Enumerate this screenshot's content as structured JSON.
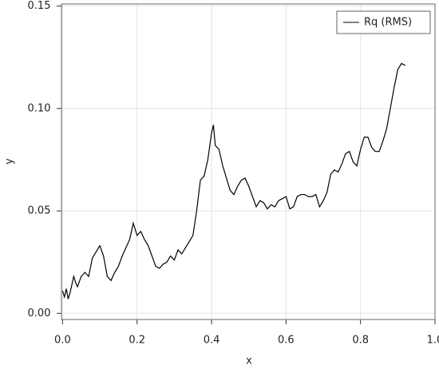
{
  "chart_data": {
    "type": "line",
    "xlabel": "x",
    "ylabel": "y",
    "x": [
      0.0,
      0.005,
      0.01,
      0.015,
      0.02,
      0.03,
      0.035,
      0.04,
      0.05,
      0.06,
      0.07,
      0.08,
      0.09,
      0.1,
      0.11,
      0.12,
      0.13,
      0.14,
      0.15,
      0.16,
      0.17,
      0.18,
      0.19,
      0.2,
      0.21,
      0.22,
      0.23,
      0.24,
      0.25,
      0.26,
      0.27,
      0.28,
      0.29,
      0.3,
      0.31,
      0.32,
      0.33,
      0.34,
      0.35,
      0.36,
      0.37,
      0.38,
      0.39,
      0.4,
      0.405,
      0.41,
      0.42,
      0.43,
      0.44,
      0.45,
      0.46,
      0.47,
      0.48,
      0.49,
      0.5,
      0.51,
      0.52,
      0.53,
      0.54,
      0.55,
      0.56,
      0.57,
      0.58,
      0.59,
      0.6,
      0.61,
      0.62,
      0.63,
      0.64,
      0.65,
      0.66,
      0.67,
      0.68,
      0.69,
      0.7,
      0.71,
      0.72,
      0.73,
      0.74,
      0.75,
      0.76,
      0.77,
      0.78,
      0.79,
      0.8,
      0.81,
      0.82,
      0.83,
      0.84,
      0.85,
      0.86,
      0.87,
      0.88,
      0.89,
      0.9,
      0.91,
      0.92
    ],
    "series": [
      {
        "name": "Rq (RMS)",
        "color": "#000000",
        "values": [
          0.011,
          0.008,
          0.012,
          0.007,
          0.01,
          0.018,
          0.015,
          0.013,
          0.018,
          0.02,
          0.018,
          0.027,
          0.03,
          0.033,
          0.028,
          0.018,
          0.016,
          0.02,
          0.023,
          0.028,
          0.032,
          0.036,
          0.044,
          0.038,
          0.04,
          0.036,
          0.033,
          0.028,
          0.023,
          0.022,
          0.024,
          0.025,
          0.028,
          0.026,
          0.031,
          0.029,
          0.032,
          0.035,
          0.038,
          0.05,
          0.065,
          0.067,
          0.075,
          0.088,
          0.092,
          0.082,
          0.08,
          0.072,
          0.066,
          0.06,
          0.058,
          0.062,
          0.065,
          0.066,
          0.062,
          0.057,
          0.052,
          0.055,
          0.054,
          0.051,
          0.053,
          0.052,
          0.055,
          0.056,
          0.057,
          0.051,
          0.052,
          0.057,
          0.058,
          0.058,
          0.057,
          0.057,
          0.058,
          0.052,
          0.055,
          0.059,
          0.068,
          0.07,
          0.069,
          0.073,
          0.078,
          0.079,
          0.074,
          0.072,
          0.08,
          0.086,
          0.086,
          0.081,
          0.079,
          0.079,
          0.084,
          0.09,
          0.1,
          0.11,
          0.119,
          0.122,
          0.121
        ]
      }
    ],
    "xlim": [
      -0.003,
      1.0
    ],
    "xticks": [
      {
        "value": 0,
        "label": "0.0"
      },
      {
        "value": 0.2,
        "label": "0.2"
      },
      {
        "value": 0.4,
        "label": "0.4"
      },
      {
        "value": 0.6,
        "label": "0.6"
      },
      {
        "value": 0.8,
        "label": "0.8"
      },
      {
        "value": 1.0,
        "label": "1.0"
      }
    ],
    "ylim": [
      -0.003,
      0.151
    ],
    "yticks": [
      {
        "value": 0,
        "label": "0.00"
      },
      {
        "value": 0.05,
        "label": "0.05"
      },
      {
        "value": 0.1,
        "label": "0.10"
      },
      {
        "value": 0.15,
        "label": "0.15"
      }
    ],
    "grid": true,
    "legend": "upper right"
  }
}
